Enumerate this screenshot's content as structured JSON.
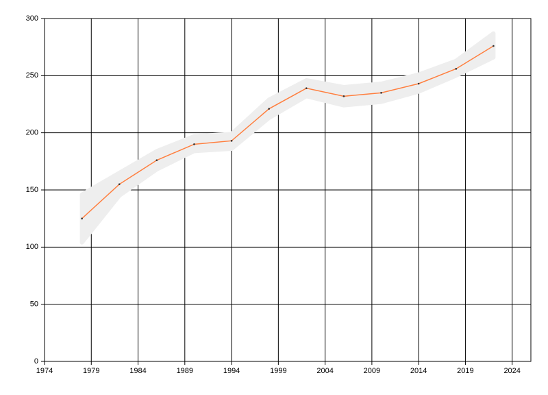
{
  "chart_data": {
    "type": "line",
    "x": [
      1978,
      1982,
      1986,
      1990,
      1994,
      1998,
      2002,
      2006,
      2010,
      2014,
      2018,
      2022
    ],
    "series": [
      {
        "color": "#ff7f3f",
        "values": [
          125,
          155,
          176,
          190,
          193,
          221,
          239,
          232,
          235,
          243,
          256,
          276
        ]
      }
    ],
    "band": {
      "color": "#eeeeee",
      "lower": [
        104,
        145,
        168,
        184,
        186,
        213,
        232,
        224,
        227,
        236,
        250,
        266
      ],
      "upper": [
        146,
        165,
        184,
        197,
        199,
        229,
        246,
        240,
        243,
        251,
        263,
        287
      ]
    },
    "marker_color": "#333333",
    "xlim": [
      1974,
      2026
    ],
    "ylim": [
      0,
      300
    ],
    "xticks": [
      1974,
      1979,
      1984,
      1989,
      1994,
      1999,
      2004,
      2009,
      2014,
      2019,
      2024
    ],
    "yticks": [
      0,
      50,
      100,
      150,
      200,
      250,
      300
    ],
    "grid": true
  }
}
